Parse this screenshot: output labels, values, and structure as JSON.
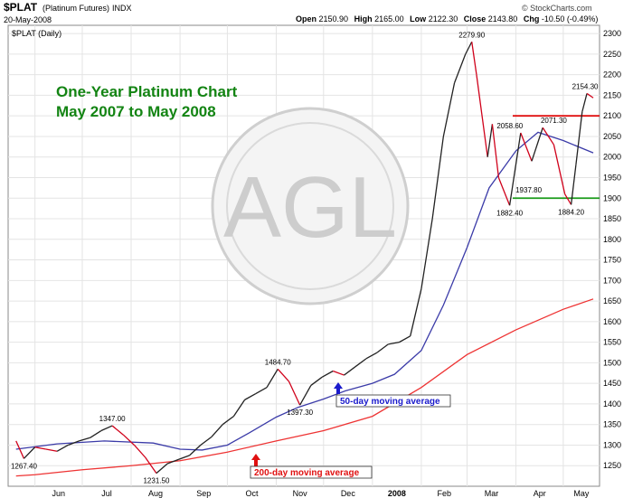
{
  "header": {
    "symbol": "$PLAT",
    "name": "(Platinum Futures)",
    "exchange": "INDX",
    "date": "20-May-2008",
    "open_label": "Open",
    "open": "2150.90",
    "high_label": "High",
    "high": "2165.00",
    "low_label": "Low",
    "low": "2122.30",
    "close_label": "Close",
    "close": "2143.80",
    "chg_label": "Chg",
    "chg": "-10.50 (-0.49%)",
    "source": "© StockCharts.com",
    "legend": "$PLAT (Daily)"
  },
  "colors": {
    "price": "#222222",
    "price_down": "#d0021b",
    "ma50": "#3b3ba8",
    "ma200": "#ee3333",
    "resistance": "#e01010",
    "support": "#1a9a1a",
    "title_text": "#138413",
    "grid": "#e4e4e4",
    "watermark": "#c8c8c8"
  },
  "chart_data": {
    "type": "line",
    "title": "One-Year Platinum Chart",
    "subtitle": "May 2007 to May 2008",
    "xlabel": "",
    "ylabel": "",
    "x_ticks": [
      "Jun",
      "Jul",
      "Aug",
      "Sep",
      "Oct",
      "Nov",
      "Dec",
      "2008",
      "Feb",
      "Mar",
      "Apr",
      "May"
    ],
    "y_ticks": [
      1250,
      1300,
      1350,
      1400,
      1450,
      1500,
      1550,
      1600,
      1650,
      1700,
      1750,
      1800,
      1850,
      1900,
      1950,
      2000,
      2050,
      2100,
      2150,
      2200,
      2250,
      2300
    ],
    "ylim": [
      1200,
      2320
    ],
    "grid": true,
    "series": [
      {
        "name": "",
        "dates": [
          "2007-05-20",
          "2007-05-25",
          "2007-06-01",
          "2007-06-08",
          "2007-06-15",
          "2007-06-22",
          "2007-06-29",
          "2007-07-06",
          "2007-07-13",
          "2007-07-20",
          "2007-07-27",
          "2007-08-03",
          "2007-08-10",
          "2007-08-17",
          "2007-08-24",
          "2007-08-31",
          "2007-09-07",
          "2007-09-14",
          "2007-09-21",
          "2007-09-28",
          "2007-10-05",
          "2007-10-12",
          "2007-10-19",
          "2007-10-26",
          "2007-11-02",
          "2007-11-09",
          "2007-11-16",
          "2007-11-23",
          "2007-11-30",
          "2007-12-07",
          "2007-12-14",
          "2007-12-21",
          "2007-12-28",
          "2008-01-04",
          "2008-01-11",
          "2008-01-18",
          "2008-01-25",
          "2008-02-01",
          "2008-02-08",
          "2008-02-15",
          "2008-02-22",
          "2008-02-29",
          "2008-03-04",
          "2008-03-07",
          "2008-03-14",
          "2008-03-17",
          "2008-03-21",
          "2008-03-28",
          "2008-04-04",
          "2008-04-11",
          "2008-04-18",
          "2008-04-25",
          "2008-05-02",
          "2008-05-06",
          "2008-05-09",
          "2008-05-13",
          "2008-05-16",
          "2008-05-20"
        ],
        "values": [
          1310,
          1267.4,
          1295,
          1290,
          1285,
          1300,
          1310,
          1318,
          1335,
          1347,
          1325,
          1300,
          1270,
          1231.5,
          1255,
          1265,
          1275,
          1300,
          1320,
          1350,
          1370,
          1410,
          1425,
          1440,
          1484.7,
          1455,
          1397.3,
          1445,
          1465,
          1480,
          1470,
          1490,
          1510,
          1525,
          1545,
          1550,
          1565,
          1680,
          1850,
          2050,
          2180,
          2250,
          2279.9,
          2200,
          2000,
          2080,
          1950,
          1882.4,
          2058.6,
          1990,
          2071.3,
          2030,
          1910,
          1884.2,
          1980,
          2110,
          2154.3,
          2143.8
        ]
      },
      {
        "name": "50-day moving average",
        "dates": [
          "2007-05-20",
          "2007-06-15",
          "2007-07-15",
          "2007-08-15",
          "2007-09-01",
          "2007-09-15",
          "2007-10-01",
          "2007-10-15",
          "2007-11-01",
          "2007-11-15",
          "2007-12-01",
          "2007-12-15",
          "2008-01-01",
          "2008-01-15",
          "2008-02-01",
          "2008-02-15",
          "2008-03-01",
          "2008-03-15",
          "2008-04-01",
          "2008-04-15",
          "2008-05-01",
          "2008-05-20"
        ],
        "values": [
          1290,
          1303,
          1310,
          1305,
          1290,
          1288,
          1300,
          1330,
          1368,
          1392,
          1412,
          1432,
          1450,
          1472,
          1530,
          1640,
          1780,
          1925,
          2015,
          2060,
          2040,
          2010
        ]
      },
      {
        "name": "200-day moving average",
        "dates": [
          "2007-05-20",
          "2007-06-01",
          "2007-07-01",
          "2007-08-01",
          "2007-09-01",
          "2007-10-01",
          "2007-11-01",
          "2007-12-01",
          "2008-01-01",
          "2008-02-01",
          "2008-03-01",
          "2008-04-01",
          "2008-05-01",
          "2008-05-20"
        ],
        "values": [
          1225,
          1228,
          1240,
          1250,
          1262,
          1283,
          1310,
          1335,
          1370,
          1440,
          1520,
          1580,
          1630,
          1655
        ]
      }
    ],
    "annotations": [
      "1267.40",
      "1347.00",
      "1231.50",
      "1484.70",
      "1397.30",
      "2279.90",
      "2058.60",
      "2071.30",
      "1937.80",
      "1882.40",
      "1884.20",
      "2154.30"
    ],
    "reference_lines": [
      {
        "name": "resistance",
        "value": 2100
      },
      {
        "name": "support",
        "value": 1900
      }
    ]
  },
  "labels": {
    "ma50": "50-day moving average",
    "ma200": "200-day moving average",
    "watermark": "AGL"
  }
}
